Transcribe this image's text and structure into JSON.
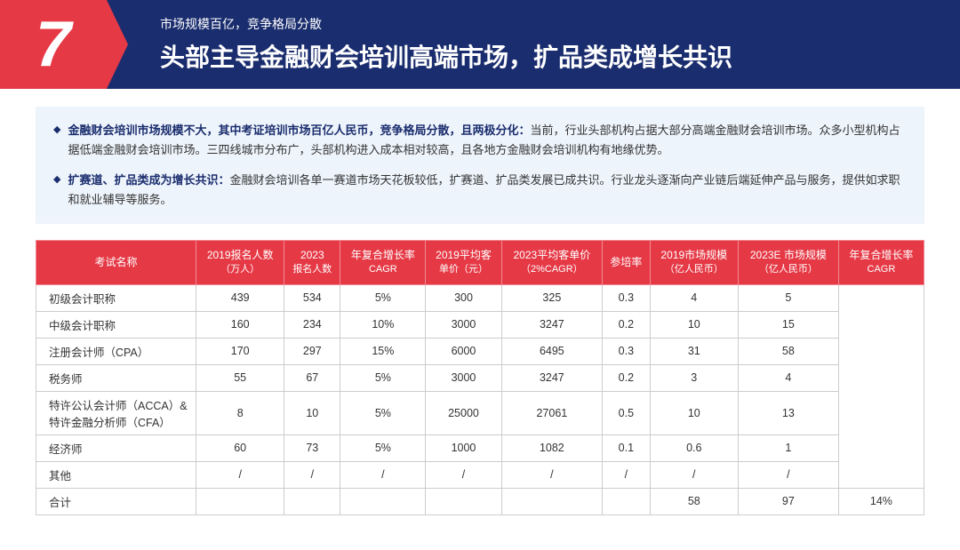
{
  "header": {
    "number": "7",
    "subtitle": "市场规模百亿，竞争格局分散",
    "title": "头部主导金融财会培训高端市场，扩品类成增长共识"
  },
  "insights": [
    {
      "bold": "金融财会培训市场规模不大，其中考证培训市场百亿人民币，竞争格局分散，且两极分化：",
      "text": "当前，行业头部机构占据大部分高端金融财会培训市场。众多小型机构占据低端金融财会培训市场。三四线城市分布广，头部机构进入成本相对较高，且各地方金融财会培训机构有地缘优势。"
    },
    {
      "bold": "扩赛道、扩品类成为增长共识：",
      "text": "金融财会培训各单一赛道市场天花板较低，扩赛道、扩品类发展已成共识。行业龙头逐渐向产业链后端延伸产品与服务，提供如求职和就业辅导等服务。"
    }
  ],
  "table": {
    "headers": [
      {
        "l1": "考试名称",
        "l2": ""
      },
      {
        "l1": "2019报名人数",
        "l2": "（万人）"
      },
      {
        "l1": "2023",
        "l2": "报名人数"
      },
      {
        "l1": "年复合增长率",
        "l2": "CAGR"
      },
      {
        "l1": "2019平均客",
        "l2": "单价（元）"
      },
      {
        "l1": "2023平均客单价",
        "l2": "（2%CAGR）"
      },
      {
        "l1": "参培率",
        "l2": ""
      },
      {
        "l1": "2019市场规模",
        "l2": "（亿人民币）"
      },
      {
        "l1": "2023E 市场规模",
        "l2": "（亿人民币）"
      },
      {
        "l1": "年复合增长率",
        "l2": "CAGR"
      }
    ],
    "rows": [
      [
        "初级会计职称",
        "439",
        "534",
        "5%",
        "300",
        "325",
        "0.3",
        "4",
        "5",
        ""
      ],
      [
        "中级会计职称",
        "160",
        "234",
        "10%",
        "3000",
        "3247",
        "0.2",
        "10",
        "15",
        ""
      ],
      [
        "注册会计师（CPA）",
        "170",
        "297",
        "15%",
        "6000",
        "6495",
        "0.3",
        "31",
        "58",
        ""
      ],
      [
        "税务师",
        "55",
        "67",
        "5%",
        "3000",
        "3247",
        "0.2",
        "3",
        "4",
        ""
      ],
      [
        "特许公认会计师（ACCA）&特许金融分析师（CFA）",
        "8",
        "10",
        "5%",
        "25000",
        "27061",
        "0.5",
        "10",
        "13",
        ""
      ],
      [
        "经济师",
        "60",
        "73",
        "5%",
        "1000",
        "1082",
        "0.1",
        "0.6",
        "1",
        ""
      ],
      [
        "其他",
        "/",
        "/",
        "/",
        "/",
        "/",
        "/",
        "/",
        "/",
        ""
      ],
      [
        "合计",
        "",
        "",
        "",
        "",
        "",
        "",
        "58",
        "97",
        "14%"
      ]
    ]
  },
  "colors": {
    "header_bg": "#1a2d6e",
    "accent": "#e63946",
    "insight_bg": "#eef4fb",
    "text": "#333333",
    "th_border": "#f08a92",
    "td_border": "#cccccc"
  }
}
